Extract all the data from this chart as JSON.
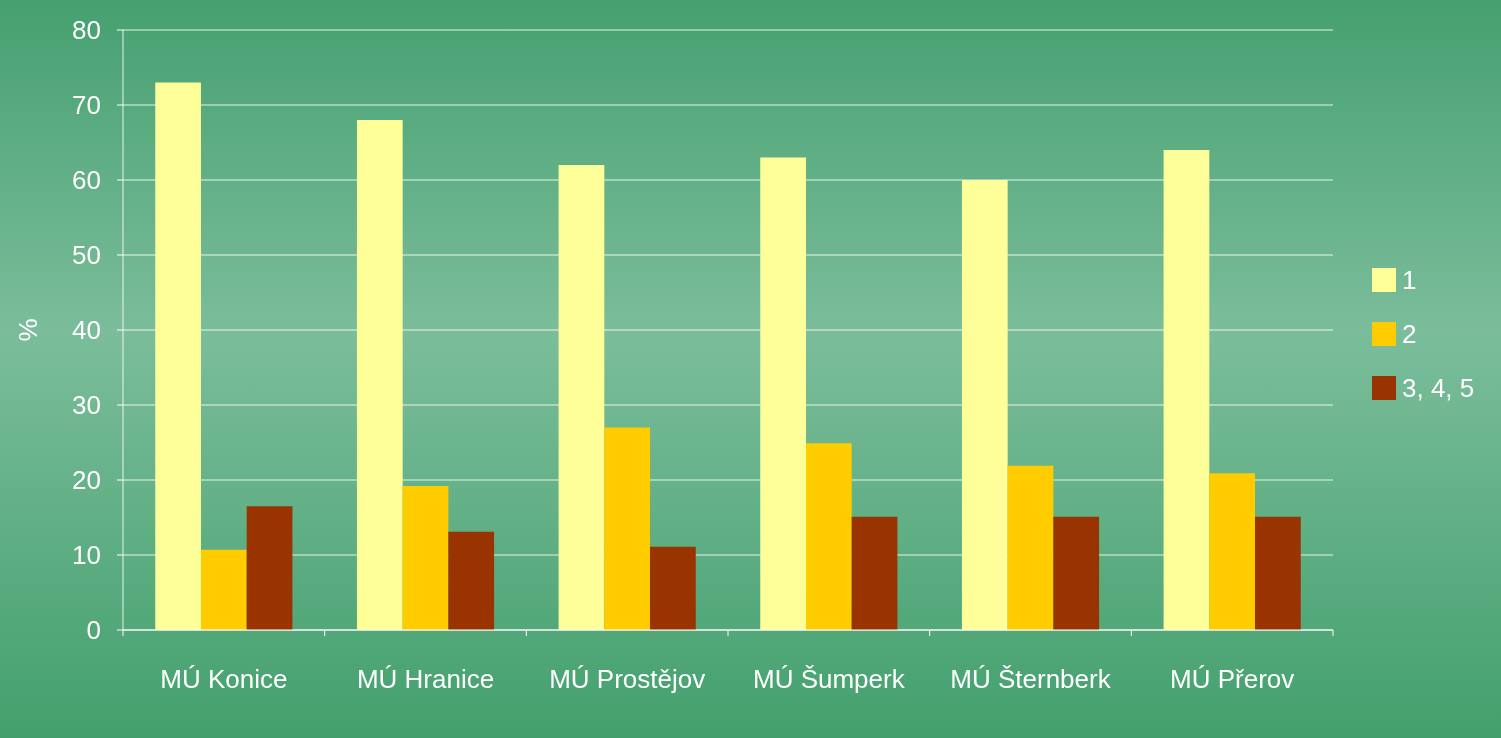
{
  "chart_data": {
    "type": "bar",
    "ylabel": "%",
    "categories": [
      "MÚ Konice",
      "MÚ Hranice",
      "MÚ Prostějov",
      "MÚ Šumperk",
      "MÚ Šternberk",
      "MÚ Přerov"
    ],
    "series": [
      {
        "name": "1",
        "color": "#ffff99",
        "values": [
          73,
          68,
          62,
          63,
          60,
          64
        ]
      },
      {
        "name": "2",
        "color": "#ffcc00",
        "values": [
          10.7,
          19.2,
          27,
          24.9,
          21.9,
          20.9
        ]
      },
      {
        "name": "3, 4, 5",
        "color": "#993300",
        "values": [
          16.5,
          13.1,
          11.1,
          15.1,
          15.1,
          15.1
        ]
      }
    ],
    "ylim": [
      0,
      80
    ],
    "yticks": [
      0,
      10,
      20,
      30,
      40,
      50,
      60,
      70,
      80
    ],
    "grid": "y",
    "legend": "right"
  }
}
